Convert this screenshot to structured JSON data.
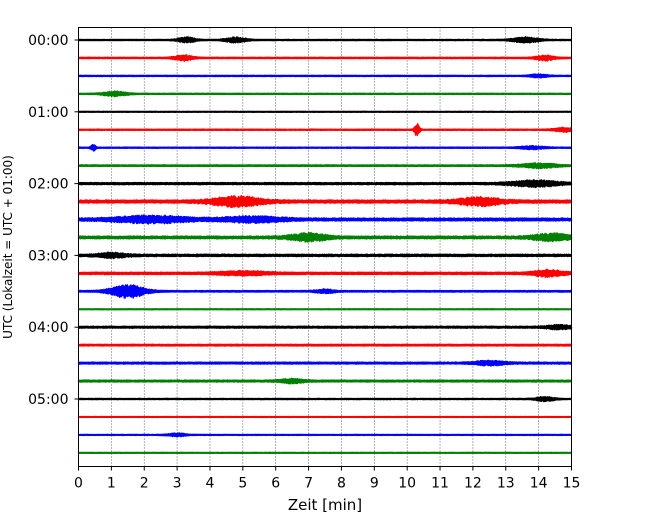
{
  "chart_data": {
    "type": "line",
    "title": "",
    "xlabel": "Zeit  [min]",
    "ylabel": "UTC (Lokalzeit = UTC + 01:00)",
    "xlim": [
      0,
      15
    ],
    "x_ticks": [
      "0",
      "1",
      "2",
      "3",
      "4",
      "5",
      "6",
      "7",
      "8",
      "9",
      "10",
      "11",
      "12",
      "13",
      "14",
      "15"
    ],
    "y_ticks": [
      "00:00",
      "01:00",
      "02:00",
      "03:00",
      "04:00",
      "05:00"
    ],
    "grid": "vertical dotted lines at each minute",
    "trace_interval_minutes": 15,
    "trace_colors": [
      "#000000",
      "#ff0000",
      "#0000ff",
      "#008000"
    ],
    "traces": [
      {
        "start_utc": "00:00",
        "color": "#000000",
        "amplitude": 0.5,
        "events": [
          {
            "t": 3.3,
            "amp": 2.5,
            "width": 0.3
          },
          {
            "t": 4.8,
            "amp": 2.6,
            "width": 0.35
          },
          {
            "t": 13.6,
            "amp": 2.6,
            "width": 0.45
          }
        ]
      },
      {
        "start_utc": "00:15",
        "color": "#ff0000",
        "amplitude": 0.6,
        "events": [
          {
            "t": 3.2,
            "amp": 2.6,
            "width": 0.3
          },
          {
            "t": 14.2,
            "amp": 2.4,
            "width": 0.3
          }
        ]
      },
      {
        "start_utc": "00:30",
        "color": "#0000ff",
        "amplitude": 0.5,
        "events": [
          {
            "t": 14.0,
            "amp": 1.5,
            "width": 0.3
          }
        ]
      },
      {
        "start_utc": "00:45",
        "color": "#008000",
        "amplitude": 0.5,
        "events": [
          {
            "t": 1.1,
            "amp": 2.2,
            "width": 0.4
          }
        ]
      },
      {
        "start_utc": "01:00",
        "color": "#000000",
        "amplitude": 0.4,
        "events": []
      },
      {
        "start_utc": "01:15",
        "color": "#ff0000",
        "amplitude": 0.5,
        "events": [
          {
            "t": 10.3,
            "amp": 6.5,
            "width": 0.08
          },
          {
            "t": 14.8,
            "amp": 2.0,
            "width": 0.4
          }
        ]
      },
      {
        "start_utc": "01:30",
        "color": "#0000ff",
        "amplitude": 0.5,
        "events": [
          {
            "t": 0.45,
            "amp": 3.0,
            "width": 0.08
          },
          {
            "t": 13.8,
            "amp": 1.5,
            "width": 0.4
          }
        ]
      },
      {
        "start_utc": "01:45",
        "color": "#008000",
        "amplitude": 0.7,
        "events": [
          {
            "t": 14.0,
            "amp": 2.2,
            "width": 0.6
          }
        ]
      },
      {
        "start_utc": "02:00",
        "color": "#000000",
        "amplitude": 1.0,
        "events": [
          {
            "t": 13.9,
            "amp": 2.8,
            "width": 0.8
          }
        ]
      },
      {
        "start_utc": "02:15",
        "color": "#ff0000",
        "amplitude": 1.5,
        "events": [
          {
            "t": 4.8,
            "amp": 4.5,
            "width": 0.8
          },
          {
            "t": 12.2,
            "amp": 3.5,
            "width": 0.7
          }
        ]
      },
      {
        "start_utc": "02:30",
        "color": "#0000ff",
        "amplitude": 1.4,
        "events": [
          {
            "t": 2.2,
            "amp": 3.2,
            "width": 1.2
          },
          {
            "t": 5.3,
            "amp": 2.5,
            "width": 1.0
          }
        ]
      },
      {
        "start_utc": "02:45",
        "color": "#008000",
        "amplitude": 1.3,
        "events": [
          {
            "t": 7.0,
            "amp": 3.5,
            "width": 0.6
          },
          {
            "t": 14.4,
            "amp": 3.2,
            "width": 0.6
          }
        ]
      },
      {
        "start_utc": "03:00",
        "color": "#000000",
        "amplitude": 1.1,
        "events": [
          {
            "t": 1.0,
            "amp": 2.0,
            "width": 0.5
          }
        ]
      },
      {
        "start_utc": "03:15",
        "color": "#ff0000",
        "amplitude": 1.1,
        "events": [
          {
            "t": 14.3,
            "amp": 3.0,
            "width": 0.5
          },
          {
            "t": 5.0,
            "amp": 1.8,
            "width": 0.8
          }
        ]
      },
      {
        "start_utc": "03:30",
        "color": "#0000ff",
        "amplitude": 0.7,
        "events": [
          {
            "t": 1.5,
            "amp": 6.5,
            "width": 0.55
          },
          {
            "t": 7.5,
            "amp": 1.8,
            "width": 0.3
          }
        ]
      },
      {
        "start_utc": "03:45",
        "color": "#008000",
        "amplitude": 0.4,
        "events": []
      },
      {
        "start_utc": "04:00",
        "color": "#000000",
        "amplitude": 0.9,
        "events": [
          {
            "t": 14.6,
            "amp": 1.8,
            "width": 0.4
          }
        ]
      },
      {
        "start_utc": "04:15",
        "color": "#ff0000",
        "amplitude": 0.8,
        "events": []
      },
      {
        "start_utc": "04:30",
        "color": "#0000ff",
        "amplitude": 0.9,
        "events": [
          {
            "t": 12.5,
            "amp": 2.0,
            "width": 0.5
          }
        ]
      },
      {
        "start_utc": "04:45",
        "color": "#008000",
        "amplitude": 0.9,
        "events": [
          {
            "t": 6.5,
            "amp": 1.8,
            "width": 0.4
          }
        ]
      },
      {
        "start_utc": "05:00",
        "color": "#000000",
        "amplitude": 0.5,
        "events": [
          {
            "t": 14.2,
            "amp": 2.2,
            "width": 0.3
          }
        ]
      },
      {
        "start_utc": "05:15",
        "color": "#ff0000",
        "amplitude": 0.35,
        "events": []
      },
      {
        "start_utc": "05:30",
        "color": "#0000ff",
        "amplitude": 0.4,
        "events": [
          {
            "t": 3.0,
            "amp": 1.5,
            "width": 0.3
          }
        ]
      },
      {
        "start_utc": "05:45",
        "color": "#008000",
        "amplitude": 0.4,
        "events": []
      }
    ]
  }
}
